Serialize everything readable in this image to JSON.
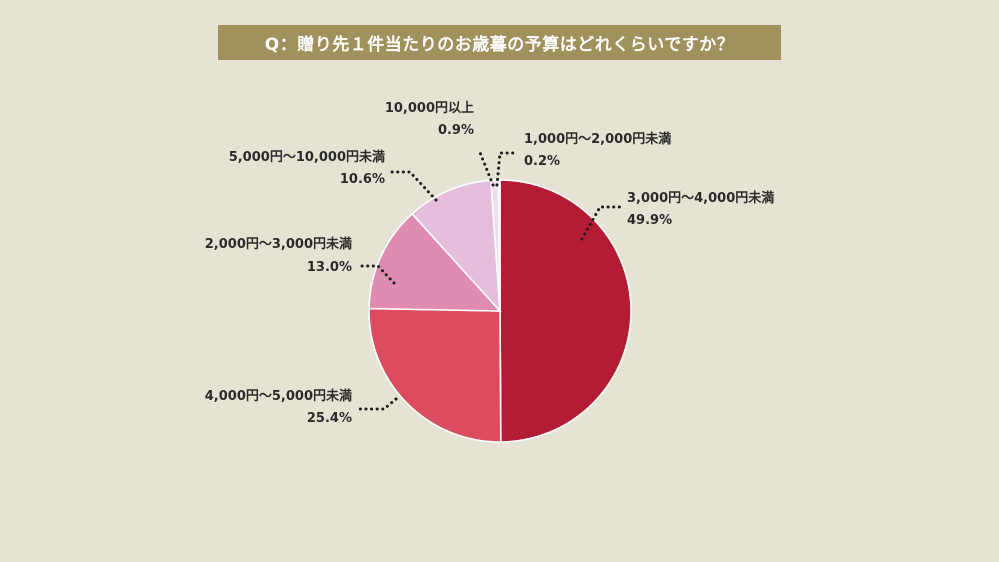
{
  "title": "Q：贈り先１件当たりのお歳暮の予算はどれくらいですか？",
  "chart_data": {
    "type": "pie",
    "title": "Q：贈り先１件当たりのお歳暮の予算はどれくらいですか？",
    "unit": "%",
    "start": "top",
    "direction": "clockwise",
    "slices": [
      {
        "label": "3,000円～4,000円未満",
        "value": 49.9,
        "value_label": "49.9%",
        "color": "#b31c33"
      },
      {
        "label": "4,000円～5,000円未満",
        "value": 25.4,
        "value_label": "25.4%",
        "color": "#dd4b5f"
      },
      {
        "label": "2,000円～3,000円未満",
        "value": 13.0,
        "value_label": "13.0%",
        "color": "#e08cb0"
      },
      {
        "label": "5,000円～10,000円未満",
        "value": 10.6,
        "value_label": "10.6%",
        "color": "#e6bedb"
      },
      {
        "label": "10,000円以上",
        "value": 0.9,
        "value_label": "0.9%",
        "color": "#f0dcec"
      },
      {
        "label": "1,000円～2,000円未満",
        "value": 0.2,
        "value_label": "0.2%",
        "color": "#f4e6ef"
      }
    ]
  }
}
